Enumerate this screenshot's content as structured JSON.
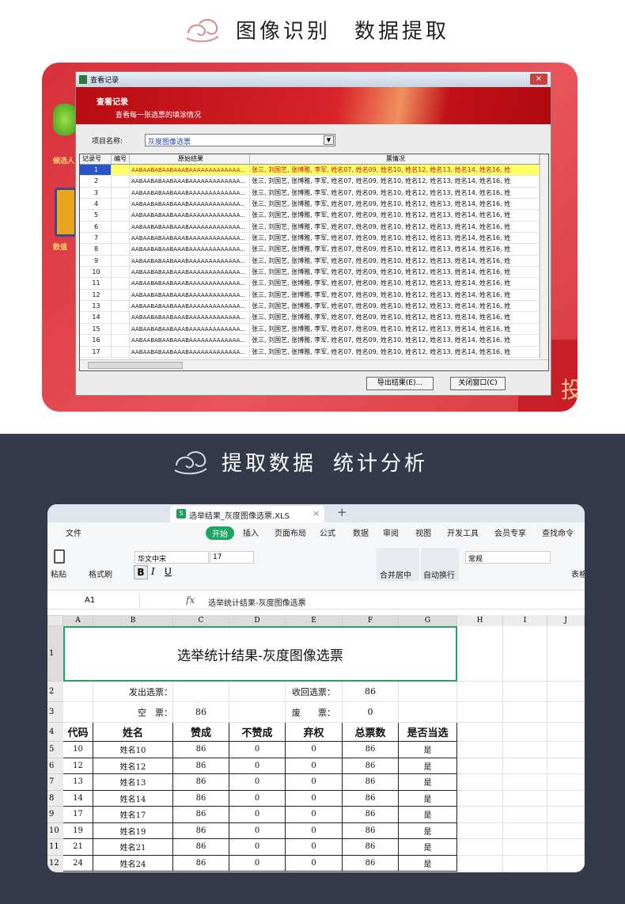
{
  "top": {
    "title_left": "图像识别",
    "title_right": "数据提取"
  },
  "side": {
    "label1": "候选人",
    "label2": "数值",
    "edge": "投"
  },
  "window": {
    "title": "查看记录",
    "banner_title": "查看记录",
    "banner_subtitle": "查看每一张选票的填涂情况",
    "project_label": "项目名称:",
    "project_value": "灰度图像选票",
    "columns": [
      "记录号",
      "编号",
      "原始结果",
      "票情况"
    ],
    "rows": [
      {
        "no": 1,
        "raw": "AABAABABAABAAABAAAAAAAAAAAAA...",
        "votes": "张三, 刘国艺, 张博雅, 李军, 姓名07, 姓名09, 姓名10, 姓名12, 姓名13, 姓名14, 姓名16, 姓"
      },
      {
        "no": 2,
        "raw": "AABAABABAABAAABAAAAAAAAAAAAA...",
        "votes": "张三, 刘国艺, 张博雅, 李军, 姓名07, 姓名09, 姓名10, 姓名12, 姓名13, 姓名14, 姓名16, 姓"
      },
      {
        "no": 3,
        "raw": "AABAABABAABAAABAAAAAAAAAAAAA...",
        "votes": "张三, 刘国艺, 张博雅, 李军, 姓名07, 姓名09, 姓名10, 姓名12, 姓名13, 姓名14, 姓名16, 姓"
      },
      {
        "no": 4,
        "raw": "AABAABABAABAAABAAAAAAAAAAAAA...",
        "votes": "张三, 刘国艺, 张博雅, 李军, 姓名07, 姓名09, 姓名10, 姓名12, 姓名13, 姓名14, 姓名16, 姓"
      },
      {
        "no": 5,
        "raw": "AABAABABAABAAABAAAAAAAAAAAAA...",
        "votes": "张三, 刘国艺, 张博雅, 李军, 姓名07, 姓名09, 姓名10, 姓名12, 姓名13, 姓名14, 姓名16, 姓"
      },
      {
        "no": 6,
        "raw": "AABAABABAABAAABAAAAAAAAAAAAA...",
        "votes": "张三, 刘国艺, 张博雅, 李军, 姓名07, 姓名09, 姓名10, 姓名12, 姓名13, 姓名14, 姓名16, 姓"
      },
      {
        "no": 7,
        "raw": "AABAABABAABAAABAAAAAAAAAAAAA...",
        "votes": "张三, 刘国艺, 张博雅, 李军, 姓名07, 姓名09, 姓名10, 姓名12, 姓名13, 姓名14, 姓名16, 姓"
      },
      {
        "no": 8,
        "raw": "AABAABABAABAAABAAAAAAAAAAAAA...",
        "votes": "张三, 刘国艺, 张博雅, 李军, 姓名07, 姓名09, 姓名10, 姓名12, 姓名13, 姓名14, 姓名16, 姓"
      },
      {
        "no": 9,
        "raw": "AABAABABAABAAABAAAAAAAAAAAAA...",
        "votes": "张三, 刘国艺, 张博雅, 李军, 姓名07, 姓名09, 姓名10, 姓名12, 姓名13, 姓名14, 姓名16, 姓"
      },
      {
        "no": 10,
        "raw": "AABAABABAABAAABAAAAAAAAAAAAA...",
        "votes": "张三, 刘国艺, 张博雅, 李军, 姓名07, 姓名09, 姓名10, 姓名12, 姓名13, 姓名14, 姓名16, 姓"
      },
      {
        "no": 11,
        "raw": "AABAABABAABAAABAAAAAAAAAAAAA...",
        "votes": "张三, 刘国艺, 张博雅, 李军, 姓名07, 姓名09, 姓名10, 姓名12, 姓名13, 姓名14, 姓名16, 姓"
      },
      {
        "no": 12,
        "raw": "AABAABABAABAAABAAAAAAAAAAAAA...",
        "votes": "张三, 刘国艺, 张博雅, 李军, 姓名07, 姓名09, 姓名10, 姓名12, 姓名13, 姓名14, 姓名16, 姓"
      },
      {
        "no": 13,
        "raw": "AABAABABAABAAABAAAAAAAAAAAAA...",
        "votes": "张三, 刘国艺, 张博雅, 李军, 姓名07, 姓名09, 姓名10, 姓名12, 姓名13, 姓名14, 姓名16, 姓"
      },
      {
        "no": 14,
        "raw": "AABAABABAABAAABAAAAAAAAAAAAA...",
        "votes": "张三, 刘国艺, 张博雅, 李军, 姓名07, 姓名09, 姓名10, 姓名12, 姓名13, 姓名14, 姓名16, 姓"
      },
      {
        "no": 15,
        "raw": "AABAABABAABAAABAAAAAAAAAAAAA...",
        "votes": "张三, 刘国艺, 张博雅, 李军, 姓名07, 姓名09, 姓名10, 姓名12, 姓名13, 姓名14, 姓名16, 姓"
      },
      {
        "no": 16,
        "raw": "AABAABABAABAAABAAAAAAAAAAAAA...",
        "votes": "张三, 刘国艺, 张博雅, 李军, 姓名07, 姓名09, 姓名10, 姓名12, 姓名13, 姓名14, 姓名16, 姓"
      },
      {
        "no": 17,
        "raw": "AABAABABAABAAABAAAAAAAAAAAAA...",
        "votes": "张三, 刘国艺, 张博雅, 李军, 姓名07, 姓名09, 姓名10, 姓名12, 姓名13, 姓名14, 姓名16, 姓"
      }
    ],
    "buttons": [
      "导出结果(E)...",
      "关闭窗口(C)"
    ]
  },
  "bottom": {
    "title_left": "提取数据",
    "title_right": "统计分析"
  },
  "sheet": {
    "file_tab": "选举结果_灰度图像选票.XLS",
    "menu": [
      "文件",
      "开始",
      "插入",
      "页面布局",
      "公式",
      "数据",
      "审阅",
      "视图",
      "开发工具",
      "会员专享",
      "查找命令"
    ],
    "font_name": "华文中宋",
    "font_size": 17,
    "number_format": "常规",
    "tool_labels": [
      "粘贴",
      "格式刷",
      "合并居中",
      "自动换行",
      "表格"
    ],
    "format_buttons": [
      "B",
      "I",
      "U"
    ],
    "name_box": "A1",
    "fx": "fx",
    "formula": "选举统计结果-灰度图像选票",
    "col_headers": [
      "A",
      "B",
      "C",
      "D",
      "E",
      "F",
      "G",
      "H",
      "I",
      "J"
    ],
    "row_headers": [
      1,
      2,
      3,
      4,
      5,
      6,
      7,
      8,
      9,
      10,
      11,
      12
    ],
    "title": "选举统计结果-灰度图像选票",
    "info": [
      [
        "发出选票：",
        null,
        null,
        "收回选票：",
        86
      ],
      [
        "空　票：",
        86,
        null,
        "废　　票：",
        0
      ]
    ],
    "table_header": [
      "代码",
      "姓名",
      "赞成",
      "不赞成",
      "弃权",
      "总票数",
      "是否当选"
    ],
    "table_rows": [
      [
        10,
        "姓名10",
        86,
        0,
        0,
        86,
        "是"
      ],
      [
        12,
        "姓名12",
        86,
        0,
        0,
        86,
        "是"
      ],
      [
        13,
        "姓名13",
        86,
        0,
        0,
        86,
        "是"
      ],
      [
        14,
        "姓名14",
        86,
        0,
        0,
        86,
        "是"
      ],
      [
        17,
        "姓名17",
        86,
        0,
        0,
        86,
        "是"
      ],
      [
        19,
        "姓名19",
        86,
        0,
        0,
        86,
        "是"
      ],
      [
        21,
        "姓名21",
        86,
        0,
        0,
        86,
        "是"
      ],
      [
        24,
        "姓名24",
        86,
        0,
        0,
        86,
        "是"
      ]
    ]
  }
}
